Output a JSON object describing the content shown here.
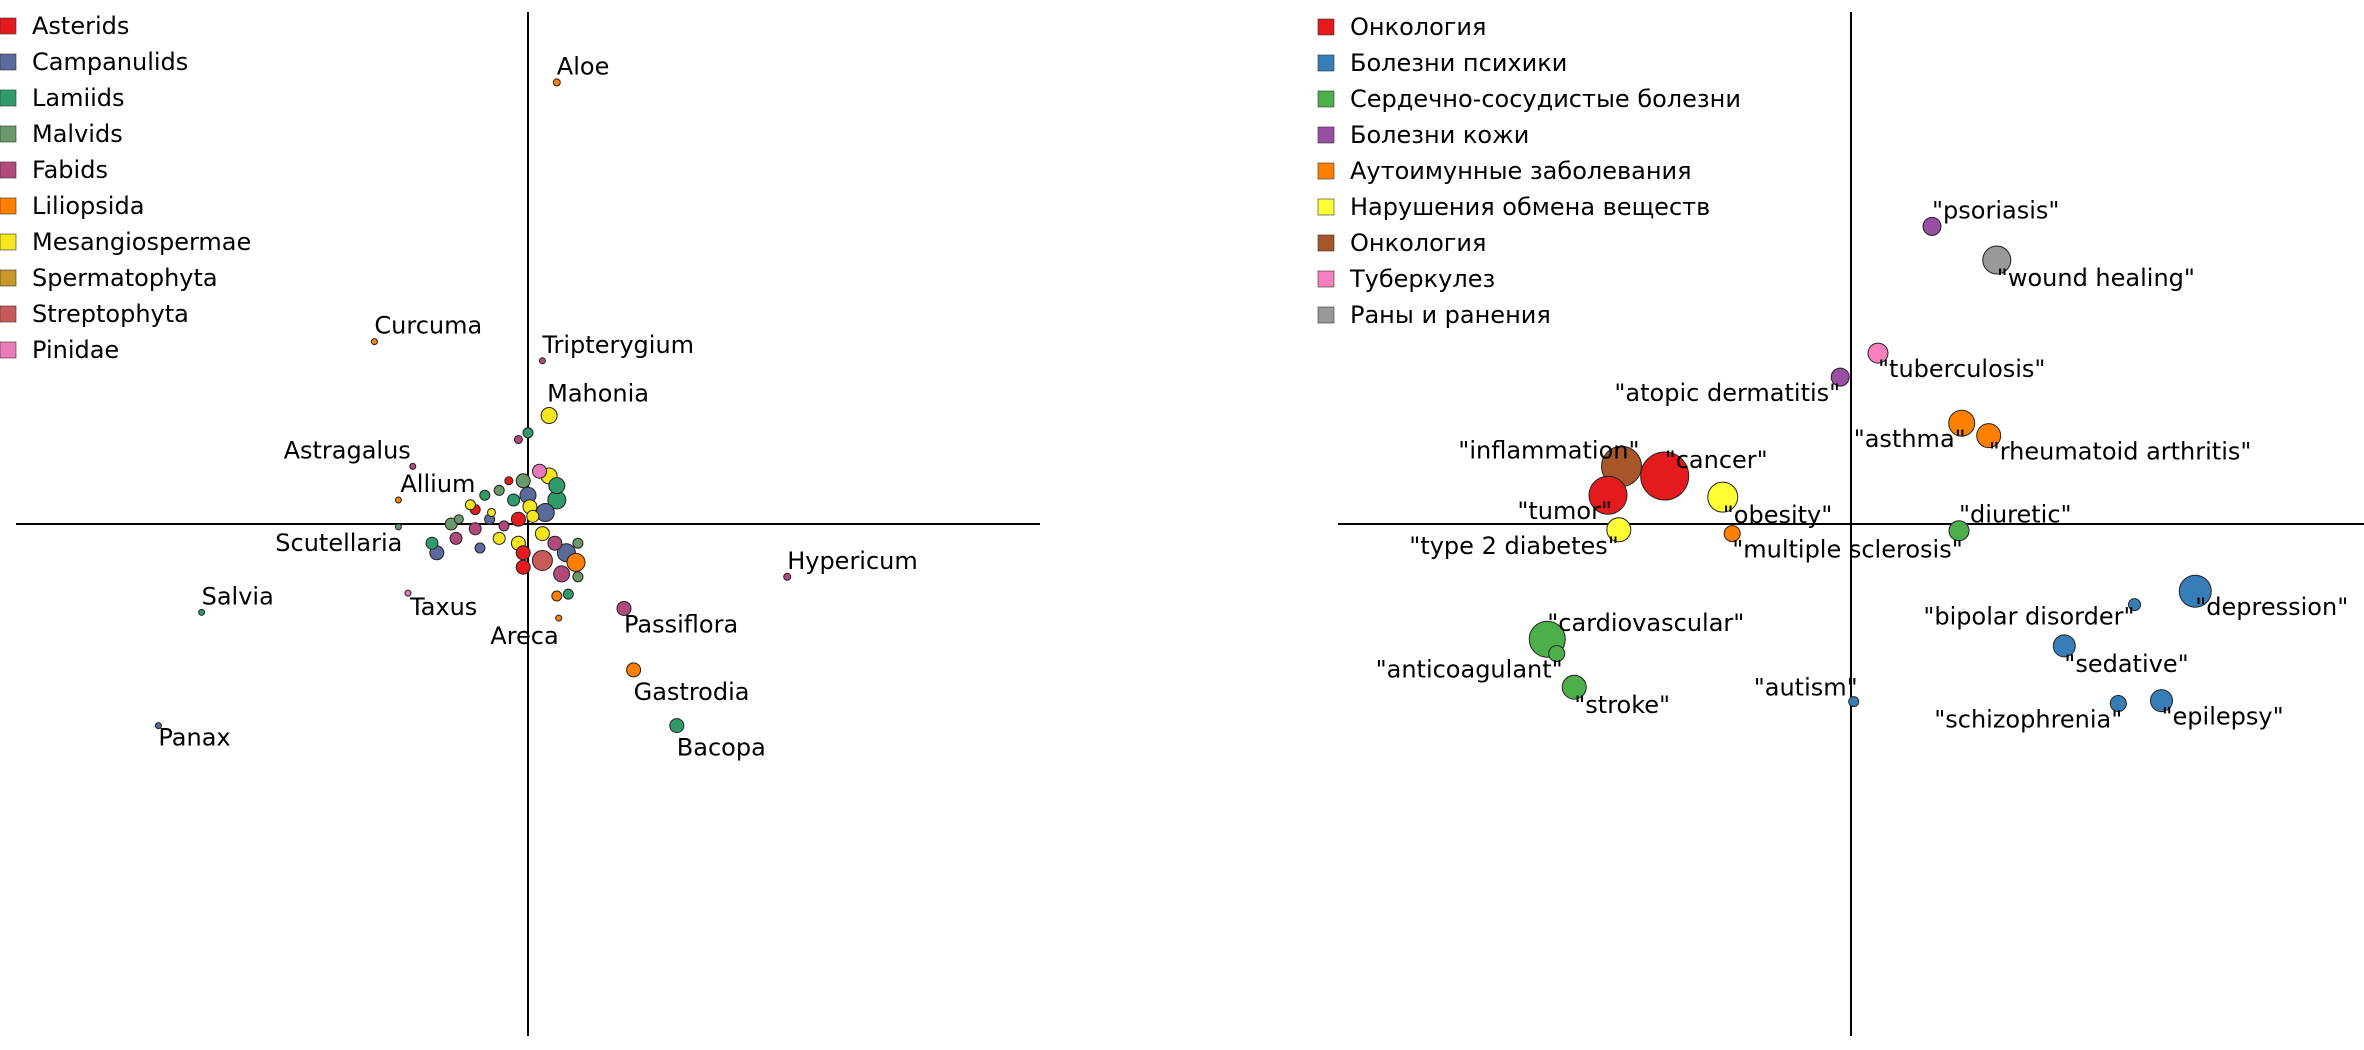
{
  "chart_data": [
    {
      "type": "scatter",
      "legend_placement": "top-left",
      "legend": [
        "Asterids",
        "Campanulids",
        "Lamiids",
        "Malvids",
        "Fabids",
        "Liliopsida",
        "Mesangiospermae",
        "Spermatophyta",
        "Streptophyta",
        "Pinidae"
      ],
      "colors": {
        "Asterids": "#e41a1c",
        "Campanulids": "#5a6a9a",
        "Lamiids": "#2f9a6a",
        "Malvids": "#6a9a6a",
        "Fabids": "#b04a7a",
        "Liliopsida": "#ff7f00",
        "Mesangiospermae": "#f5e620",
        "Spermatophyta": "#c9982a",
        "Streptophyta": "#c85a5a",
        "Pinidae": "#e87ab8"
      },
      "xlim": [
        -5.3,
        5.3
      ],
      "ylim": [
        -5.3,
        5.3
      ],
      "axes_at_origin": true,
      "points": [
        {
          "label": "Aloe",
          "x": 0.3,
          "y": 4.6,
          "size": 7,
          "group": "Liliopsida"
        },
        {
          "label": "Curcuma",
          "x": -1.6,
          "y": 1.9,
          "size": 6,
          "group": "Liliopsida"
        },
        {
          "label": "Tripterygium",
          "x": 0.15,
          "y": 1.7,
          "size": 6,
          "group": "Fabids"
        },
        {
          "label": "Mahonia",
          "x": 0.22,
          "y": 1.13,
          "size": 16,
          "group": "Mesangiospermae"
        },
        {
          "label": "Astragalus",
          "x": -1.2,
          "y": 0.6,
          "size": 6,
          "group": "Fabids"
        },
        {
          "label": "Allium",
          "x": -1.35,
          "y": 0.25,
          "size": 6,
          "group": "Liliopsida"
        },
        {
          "label": "Scutellaria",
          "x": -1.35,
          "y": -0.03,
          "size": 6,
          "group": "Malvids"
        },
        {
          "label": "Hypericum",
          "x": 2.7,
          "y": -0.55,
          "size": 7,
          "group": "Fabids"
        },
        {
          "label": "Salvia",
          "x": -3.4,
          "y": -0.92,
          "size": 6,
          "group": "Lamiids"
        },
        {
          "label": "Taxus",
          "x": -1.25,
          "y": -0.72,
          "size": 6,
          "group": "Pinidae"
        },
        {
          "label": "Areca",
          "x": 0.32,
          "y": -0.98,
          "size": 6,
          "group": "Liliopsida"
        },
        {
          "label": "Passiflora",
          "x": 1.0,
          "y": -0.88,
          "size": 14,
          "group": "Fabids"
        },
        {
          "label": "Gastrodia",
          "x": 1.1,
          "y": -1.52,
          "size": 14,
          "group": "Liliopsida"
        },
        {
          "label": "Bacopa",
          "x": 1.55,
          "y": -2.1,
          "size": 14,
          "group": "Lamiids"
        },
        {
          "label": "Panax",
          "x": -3.85,
          "y": -2.1,
          "size": 6,
          "group": "Campanulids"
        },
        {
          "label": "",
          "x": 0.0,
          "y": 0.95,
          "size": 10,
          "group": "Lamiids"
        },
        {
          "label": "",
          "x": -0.1,
          "y": 0.88,
          "size": 8,
          "group": "Fabids"
        },
        {
          "label": "",
          "x": 0.12,
          "y": 0.55,
          "size": 14,
          "group": "Pinidae"
        },
        {
          "label": "",
          "x": 0.22,
          "y": 0.5,
          "size": 16,
          "group": "Mesangiospermae"
        },
        {
          "label": "",
          "x": 0.3,
          "y": 0.4,
          "size": 16,
          "group": "Lamiids"
        },
        {
          "label": "",
          "x": -0.05,
          "y": 0.45,
          "size": 14,
          "group": "Malvids"
        },
        {
          "label": "",
          "x": -0.2,
          "y": 0.45,
          "size": 8,
          "group": "Asterids"
        },
        {
          "label": "",
          "x": 0.0,
          "y": 0.3,
          "size": 16,
          "group": "Campanulids"
        },
        {
          "label": "",
          "x": -0.3,
          "y": 0.35,
          "size": 10,
          "group": "Malvids"
        },
        {
          "label": "",
          "x": -0.45,
          "y": 0.3,
          "size": 10,
          "group": "Lamiids"
        },
        {
          "label": "",
          "x": -0.15,
          "y": 0.25,
          "size": 12,
          "group": "Lamiids"
        },
        {
          "label": "",
          "x": 0.3,
          "y": 0.25,
          "size": 18,
          "group": "Lamiids"
        },
        {
          "label": "",
          "x": 0.02,
          "y": 0.18,
          "size": 14,
          "group": "Mesangiospermae"
        },
        {
          "label": "",
          "x": 0.18,
          "y": 0.12,
          "size": 18,
          "group": "Campanulids"
        },
        {
          "label": "",
          "x": -0.38,
          "y": 0.12,
          "size": 8,
          "group": "Mesangiospermae"
        },
        {
          "label": "",
          "x": -0.55,
          "y": 0.15,
          "size": 10,
          "group": "Asterids"
        },
        {
          "label": "",
          "x": -0.72,
          "y": 0.05,
          "size": 9,
          "group": "Malvids"
        },
        {
          "label": "",
          "x": -0.6,
          "y": 0.2,
          "size": 10,
          "group": "Mesangiospermae"
        },
        {
          "label": "",
          "x": -0.4,
          "y": 0.05,
          "size": 10,
          "group": "Campanulids"
        },
        {
          "label": "",
          "x": -0.1,
          "y": 0.05,
          "size": 14,
          "group": "Asterids"
        },
        {
          "label": "",
          "x": 0.05,
          "y": 0.08,
          "size": 12,
          "group": "Mesangiospermae"
        },
        {
          "label": "",
          "x": -0.25,
          "y": -0.02,
          "size": 10,
          "group": "Fabids"
        },
        {
          "label": "",
          "x": -0.55,
          "y": -0.05,
          "size": 12,
          "group": "Fabids"
        },
        {
          "label": "",
          "x": -0.8,
          "y": 0.0,
          "size": 12,
          "group": "Malvids"
        },
        {
          "label": "",
          "x": -0.75,
          "y": -0.15,
          "size": 12,
          "group": "Fabids"
        },
        {
          "label": "",
          "x": -0.5,
          "y": -0.25,
          "size": 10,
          "group": "Campanulids"
        },
        {
          "label": "",
          "x": -0.3,
          "y": -0.15,
          "size": 12,
          "group": "Mesangiospermae"
        },
        {
          "label": "",
          "x": -0.1,
          "y": -0.2,
          "size": 14,
          "group": "Mesangiospermae"
        },
        {
          "label": "",
          "x": 0.15,
          "y": -0.1,
          "size": 14,
          "group": "Mesangiospermae"
        },
        {
          "label": "",
          "x": 0.28,
          "y": -0.2,
          "size": 14,
          "group": "Fabids"
        },
        {
          "label": "",
          "x": 0.4,
          "y": -0.3,
          "size": 18,
          "group": "Campanulids"
        },
        {
          "label": "",
          "x": 0.52,
          "y": -0.2,
          "size": 10,
          "group": "Malvids"
        },
        {
          "label": "",
          "x": -1.0,
          "y": -0.2,
          "size": 12,
          "group": "Lamiids"
        },
        {
          "label": "",
          "x": -0.95,
          "y": -0.3,
          "size": 14,
          "group": "Campanulids"
        },
        {
          "label": "",
          "x": 0.15,
          "y": -0.38,
          "size": 20,
          "group": "Streptophyta"
        },
        {
          "label": "",
          "x": -0.05,
          "y": -0.3,
          "size": 14,
          "group": "Asterids"
        },
        {
          "label": "",
          "x": -0.05,
          "y": -0.45,
          "size": 14,
          "group": "Asterids"
        },
        {
          "label": "",
          "x": 0.35,
          "y": -0.52,
          "size": 16,
          "group": "Fabids"
        },
        {
          "label": "",
          "x": 0.5,
          "y": -0.4,
          "size": 18,
          "group": "Liliopsida"
        },
        {
          "label": "",
          "x": 0.52,
          "y": -0.55,
          "size": 10,
          "group": "Malvids"
        },
        {
          "label": "",
          "x": 0.3,
          "y": -0.75,
          "size": 10,
          "group": "Liliopsida"
        },
        {
          "label": "",
          "x": 0.42,
          "y": -0.73,
          "size": 10,
          "group": "Lamiids"
        }
      ]
    },
    {
      "type": "scatter",
      "legend_placement": "top-left",
      "legend": [
        "Онкология",
        "Болезни психики",
        "Сердечно-сосудистые болезни",
        "Болезни кожи",
        "Аутоимунные заболевания",
        "Нарушения обмена веществ",
        "Онкология",
        "Туберкулез",
        "Раны и ранения"
      ],
      "colors": [
        "#e41a1c",
        "#377eb8",
        "#4daf4a",
        "#984ea3",
        "#ff7f00",
        "#ffff33",
        "#a65628",
        "#f781bf",
        "#999999"
      ],
      "xlim": [
        -5.3,
        5.3
      ],
      "ylim": [
        -5.3,
        5.3
      ],
      "axes_at_origin": true,
      "points": [
        {
          "label": "\"psoriasis\"",
          "x": 0.6,
          "y": 3.1,
          "size": 18,
          "group": 3
        },
        {
          "label": "\"wound healing\"",
          "x": 1.08,
          "y": 2.75,
          "size": 28,
          "group": 8
        },
        {
          "label": "\"tuberculosis\"",
          "x": 0.2,
          "y": 1.78,
          "size": 20,
          "group": 7
        },
        {
          "label": "\"atopic dermatitis\"",
          "x": -0.08,
          "y": 1.53,
          "size": 18,
          "group": 3
        },
        {
          "label": "\"asthma\"",
          "x": 0.82,
          "y": 1.05,
          "size": 26,
          "group": 4
        },
        {
          "label": "\"rheumatoid arthritis\"",
          "x": 1.02,
          "y": 0.92,
          "size": 24,
          "group": 4
        },
        {
          "label": "\"cancer\"",
          "x": -1.38,
          "y": 0.5,
          "size": 48,
          "group": 0
        },
        {
          "label": "\"inflammation\"",
          "x": -1.7,
          "y": 0.6,
          "size": 40,
          "group": 6
        },
        {
          "label": "\"tumor\"",
          "x": -1.8,
          "y": 0.3,
          "size": 38,
          "group": 0
        },
        {
          "label": "\"obesity\"",
          "x": -0.95,
          "y": 0.28,
          "size": 30,
          "group": 5
        },
        {
          "label": "\"type 2 diabetes\"",
          "x": -1.72,
          "y": -0.06,
          "size": 24,
          "group": 5
        },
        {
          "label": "\"multiple sclerosis\"",
          "x": -0.88,
          "y": -0.1,
          "size": 16,
          "group": 4
        },
        {
          "label": "\"diuretic\"",
          "x": 0.8,
          "y": -0.07,
          "size": 20,
          "group": 2
        },
        {
          "label": "\"depression\"",
          "x": 2.55,
          "y": -0.7,
          "size": 32,
          "group": 1
        },
        {
          "label": "\"bipolar disorder\"",
          "x": 2.1,
          "y": -0.84,
          "size": 12,
          "group": 1
        },
        {
          "label": "\"sedative\"",
          "x": 1.58,
          "y": -1.27,
          "size": 22,
          "group": 1
        },
        {
          "label": "\"cardiovascular\"",
          "x": -2.25,
          "y": -1.2,
          "size": 36,
          "group": 2
        },
        {
          "label": "\"anticoagulant\"",
          "x": -2.18,
          "y": -1.35,
          "size": 16,
          "group": 2
        },
        {
          "label": "\"stroke\"",
          "x": -2.05,
          "y": -1.7,
          "size": 24,
          "group": 2
        },
        {
          "label": "\"autism\"",
          "x": 0.02,
          "y": -1.85,
          "size": 10,
          "group": 1
        },
        {
          "label": "\"schizophrenia\"",
          "x": 1.98,
          "y": -1.87,
          "size": 16,
          "group": 1
        },
        {
          "label": "\"epilepsy\"",
          "x": 2.3,
          "y": -1.84,
          "size": 22,
          "group": 1
        }
      ]
    }
  ]
}
